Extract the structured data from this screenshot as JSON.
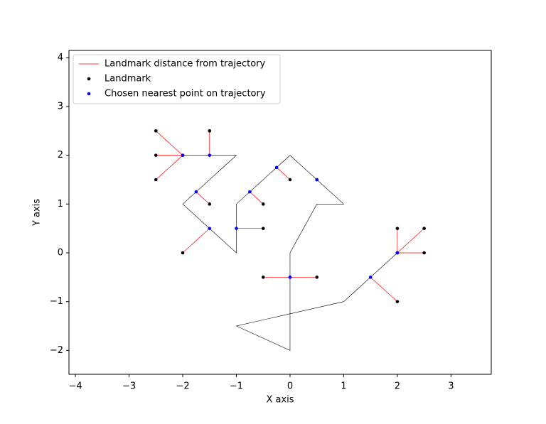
{
  "chart_data": {
    "type": "line",
    "xlabel": "X axis",
    "ylabel": "Y axis",
    "xlim": [
      -4.12,
      3.75
    ],
    "ylim": [
      -2.49,
      4.15
    ],
    "xticks": [
      {
        "value": -4,
        "label": "−4"
      },
      {
        "value": -3,
        "label": "−3"
      },
      {
        "value": -2,
        "label": "−2"
      },
      {
        "value": -1,
        "label": "−1"
      },
      0,
      1,
      2,
      3
    ],
    "yticks": [
      {
        "value": -2,
        "label": "−2"
      },
      {
        "value": -1,
        "label": "−1"
      },
      0,
      1,
      2,
      3,
      4
    ],
    "legend": "upper left",
    "trajectory": {
      "color": "#000000",
      "x": [
        -2,
        -1,
        -2,
        -1,
        -1,
        0,
        1,
        0.5,
        0,
        0,
        -1,
        1,
        2
      ],
      "y": [
        2,
        2,
        1,
        0,
        1,
        2,
        1,
        1,
        0,
        -2,
        -1.5,
        -1,
        0
      ]
    },
    "series": [
      {
        "name": "Landmark distance from trajectory",
        "color": "#ff0000"
      },
      {
        "name": "Landmark",
        "color": "#000000",
        "x": [
          -2.5,
          -2.5,
          -2.5,
          -1.5,
          -1.5,
          -2,
          -0.5,
          -0.5,
          0,
          0.5,
          -0.5,
          0.5,
          2,
          2,
          2.5,
          2.5
        ],
        "y": [
          2.5,
          2,
          1.5,
          2.5,
          1,
          0,
          0.5,
          1,
          1.5,
          1.5,
          -0.5,
          -0.5,
          -1,
          0.5,
          0.5,
          0
        ]
      },
      {
        "name": "Chosen nearest point on trajectory",
        "color": "#0000ff",
        "x": [
          -2,
          -2,
          -2,
          -1.5,
          -1.75,
          -1.5,
          -1,
          -0.75,
          -0.25,
          0.5,
          0,
          0,
          1.5,
          2,
          2,
          2
        ],
        "y": [
          2,
          2,
          2,
          2,
          1.25,
          0.5,
          0.5,
          1.25,
          1.75,
          1.5,
          -0.5,
          -0.5,
          -0.5,
          0,
          0,
          0
        ]
      }
    ]
  }
}
